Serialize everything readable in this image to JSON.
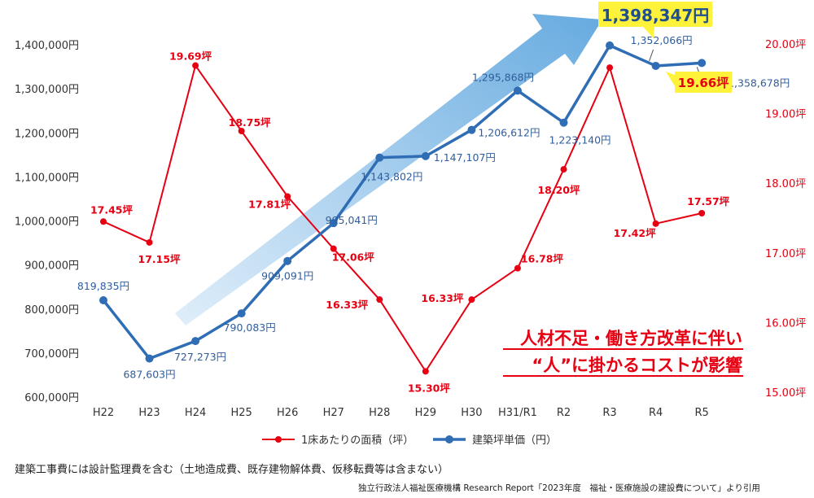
{
  "chart_data": {
    "type": "line",
    "categories": [
      "H22",
      "H23",
      "H24",
      "H25",
      "H26",
      "H27",
      "H28",
      "H29",
      "H30",
      "H31/R1",
      "R2",
      "R3",
      "R4",
      "R5"
    ],
    "series": [
      {
        "name": "1床あたりの面積（坪）",
        "axis": "right",
        "color": "#e60012",
        "values": [
          17.45,
          17.15,
          19.69,
          18.75,
          17.81,
          17.06,
          16.33,
          15.3,
          16.33,
          16.78,
          18.2,
          19.66,
          17.42,
          17.57
        ],
        "labels": [
          "17.45坪",
          "17.15坪",
          "19.69坪",
          "18.75坪",
          "17.81坪",
          "17.06坪",
          "16.33坪",
          "15.30坪",
          "16.33坪",
          "16.78坪",
          "18.20坪",
          "19.66坪",
          "17.42坪",
          "17.57坪"
        ]
      },
      {
        "name": "建築坪単価（円）",
        "axis": "left",
        "color": "#2f6db5",
        "values": [
          819835,
          687603,
          727273,
          790083,
          909091,
          995041,
          1143802,
          1147107,
          1206612,
          1295868,
          1223140,
          1398347,
          1352066,
          1358678
        ],
        "labels": [
          "819,835円",
          "687,603円",
          "727,273円",
          "790,083円",
          "909,091円",
          "995,041円",
          "1,143,802円",
          "1,147,107円",
          "1,206,612円",
          "1,295,868円",
          "1,223,140円",
          "1,398,347円",
          "1,352,066円",
          "1,358,678円"
        ]
      }
    ],
    "y_left": {
      "range": [
        600000,
        1400000
      ],
      "ticks": [
        "600,000円",
        "700,000円",
        "800,000円",
        "900,000円",
        "1,000,000円",
        "1,100,000円",
        "1,200,000円",
        "1,300,000円",
        "1,400,000円"
      ]
    },
    "y_right": {
      "range": [
        15.0,
        20.0
      ],
      "ticks": [
        "15.00坪",
        "16.00坪",
        "17.00坪",
        "18.00坪",
        "19.00坪",
        "20.00坪"
      ]
    },
    "legend_position": "bottom",
    "grid": false,
    "highlight": {
      "blue_value_label": "1,398,347円",
      "red_value_label": "19.66坪",
      "highlight_color": "#fff23a"
    },
    "annotation": {
      "line1": "人材不足・働き方改革に伴い",
      "line2": "“人”に掛かるコストが影響",
      "color": "#e60012"
    }
  },
  "footer": {
    "note": "建築工事費には設計監理費を含む（土地造成費、既存建物解体費、仮移転費等は含まない）",
    "source": "独立行政法人福祉医療機構 Research Report「2023年度　福祉・医療施設の建設費について」より引用"
  }
}
